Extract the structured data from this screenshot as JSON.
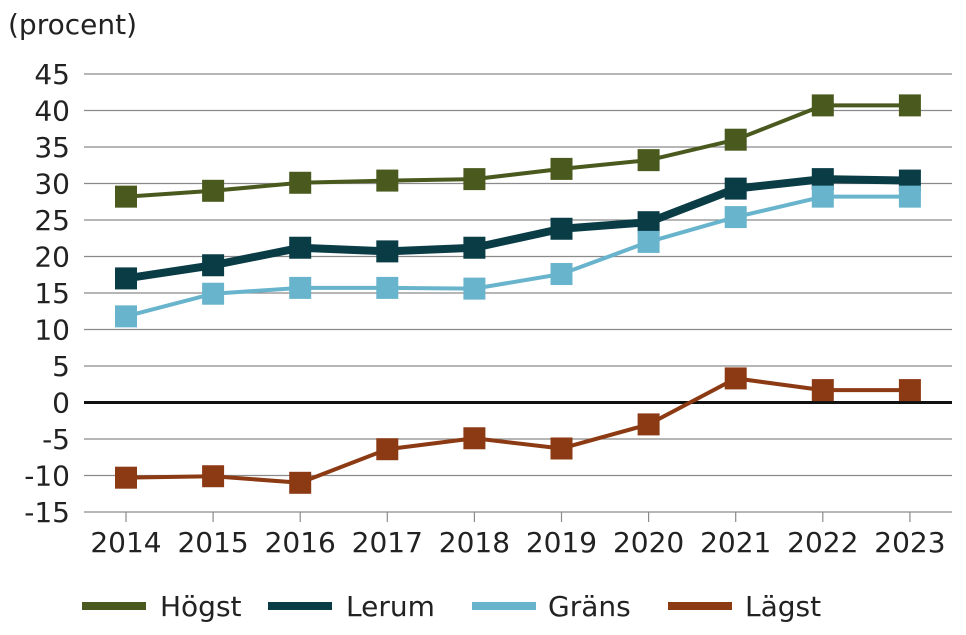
{
  "chart_data": {
    "type": "line",
    "title": "",
    "unit_label": "(procent)",
    "xlabel": "",
    "ylabel": "",
    "categories": [
      "2014",
      "2015",
      "2016",
      "2017",
      "2018",
      "2019",
      "2020",
      "2021",
      "2022",
      "2023"
    ],
    "ylim": [
      -15,
      45
    ],
    "yticks": [
      45,
      40,
      35,
      30,
      25,
      20,
      15,
      10,
      5,
      0,
      -5,
      -10,
      -15
    ],
    "grid": true,
    "legend_position": "bottom",
    "series": [
      {
        "name": "Högst",
        "color": "#4a5a1e",
        "values": [
          28.2,
          29.0,
          30.1,
          30.4,
          30.6,
          32.0,
          33.2,
          36.0,
          40.7,
          40.7
        ]
      },
      {
        "name": "Lerum",
        "color": "#0a3c46",
        "values": [
          17.0,
          18.8,
          21.2,
          20.7,
          21.2,
          23.8,
          24.7,
          29.3,
          30.6,
          30.4
        ]
      },
      {
        "name": "Gräns",
        "color": "#68b4cc",
        "values": [
          11.8,
          14.9,
          15.7,
          15.7,
          15.6,
          17.6,
          22.0,
          25.4,
          28.2,
          28.2
        ]
      },
      {
        "name": "Lägst",
        "color": "#8c3a14",
        "values": [
          -10.3,
          -10.1,
          -11.0,
          -6.4,
          -4.9,
          -6.3,
          -3.0,
          3.3,
          1.7,
          1.7
        ]
      }
    ]
  }
}
